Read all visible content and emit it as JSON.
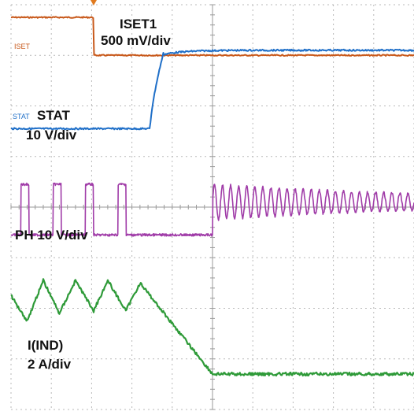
{
  "chart_data": {
    "type": "line",
    "title": "",
    "xlabel": "",
    "ylabel": "",
    "grid": true,
    "grid_divisions": {
      "x": 10,
      "y": 8
    },
    "xlim": [
      0,
      10
    ],
    "ylim": [
      -4,
      4
    ],
    "x_units": "div",
    "y_units": "div",
    "trigger_marker_x": 2.05,
    "annotations": [
      {
        "id": "iset1",
        "lines": [
          "ISET1",
          "500 mV/div"
        ]
      },
      {
        "id": "stat",
        "lines": [
          "STAT",
          "10 V/div"
        ]
      },
      {
        "id": "ph",
        "lines": [
          "PH  10 V/div"
        ]
      },
      {
        "id": "iind",
        "lines": [
          "I(IND)",
          "2 A/div"
        ]
      }
    ],
    "series": [
      {
        "marker": "ISET",
        "color": "#c8591b",
        "kind": "step",
        "levels": [
          3.75,
          3.0
        ],
        "transition_x": 2.05
      },
      {
        "marker": "STAT",
        "color": "#1f6fc8",
        "kind": "rise",
        "levels": [
          1.55,
          3.1
        ],
        "transition_x": [
          3.45,
          3.8
        ]
      },
      {
        "color": "#a03ca8",
        "kind": "pulses_then_ring",
        "base_level": -0.55,
        "high_level": 0.45,
        "pulses_x": [
          [
            0.25,
            0.45
          ],
          [
            1.05,
            1.25
          ],
          [
            1.85,
            2.05
          ],
          [
            2.65,
            2.85
          ]
        ],
        "ring_start_x": 5.0,
        "ring_center": 0.1,
        "ring_amplitude": 0.35,
        "ring_decay": 0.15,
        "ring_period_div": 0.2
      },
      {
        "color": "#2e9a38",
        "kind": "triangle_then_fall",
        "points": [
          [
            0.0,
            -1.75
          ],
          [
            0.4,
            -2.25
          ],
          [
            0.8,
            -1.45
          ],
          [
            1.2,
            -2.1
          ],
          [
            1.6,
            -1.45
          ],
          [
            2.05,
            -2.05
          ],
          [
            2.4,
            -1.45
          ],
          [
            2.85,
            -2.05
          ],
          [
            3.2,
            -1.5
          ],
          [
            5.0,
            -3.3
          ],
          [
            10.0,
            -3.3
          ]
        ]
      }
    ]
  }
}
